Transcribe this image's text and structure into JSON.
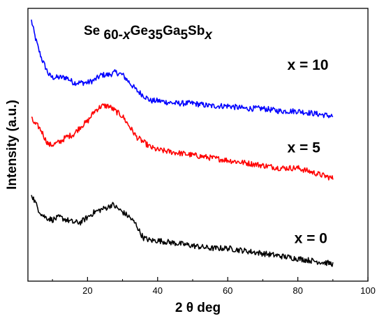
{
  "chart_data": {
    "type": "line",
    "title": {
      "parts": [
        {
          "text": "Se ",
          "sub": false,
          "italic": false
        },
        {
          "text": "60-",
          "sub": true,
          "italic": false
        },
        {
          "text": "x",
          "sub": true,
          "italic": true
        },
        {
          "text": "Ge",
          "sub": false,
          "italic": false
        },
        {
          "text": "35",
          "sub": true,
          "italic": false
        },
        {
          "text": "Ga",
          "sub": false,
          "italic": false
        },
        {
          "text": "5",
          "sub": true,
          "italic": false
        },
        {
          "text": "Sb",
          "sub": false,
          "italic": false
        },
        {
          "text": "x",
          "sub": true,
          "italic": true
        }
      ]
    },
    "xlabel": "2 θ  deg",
    "ylabel": "Intensity (a.u.)",
    "xlim": [
      3,
      100
    ],
    "ylim": [
      0,
      100
    ],
    "xticks": [
      20,
      40,
      60,
      80,
      100
    ],
    "yticks_shown": false,
    "grid": false,
    "legend": "none",
    "series": [
      {
        "name": "x = 10",
        "color": "#0000ff",
        "label_anchor": {
          "x": 77,
          "y": 79
        },
        "points": [
          [
            4,
            98
          ],
          [
            5,
            92
          ],
          [
            6,
            87
          ],
          [
            7,
            83
          ],
          [
            8,
            80
          ],
          [
            9,
            77
          ],
          [
            10,
            76
          ],
          [
            12,
            76
          ],
          [
            14,
            76
          ],
          [
            16,
            74
          ],
          [
            18,
            74
          ],
          [
            20,
            74
          ],
          [
            22,
            75
          ],
          [
            24,
            77
          ],
          [
            26,
            77
          ],
          [
            28,
            78
          ],
          [
            30,
            77
          ],
          [
            32,
            74
          ],
          [
            34,
            71
          ],
          [
            36,
            69
          ],
          [
            38,
            67
          ],
          [
            40,
            67
          ],
          [
            45,
            66
          ],
          [
            50,
            66
          ],
          [
            55,
            65
          ],
          [
            60,
            65
          ],
          [
            65,
            64
          ],
          [
            70,
            64
          ],
          [
            75,
            63
          ],
          [
            80,
            63
          ],
          [
            85,
            62
          ],
          [
            90,
            61
          ]
        ]
      },
      {
        "name": "x = 5",
        "color": "#ff0000",
        "label_anchor": {
          "x": 77,
          "y": 47
        },
        "points": [
          [
            4,
            60
          ],
          [
            5,
            58
          ],
          [
            6,
            57
          ],
          [
            7,
            55
          ],
          [
            8,
            52
          ],
          [
            9,
            50
          ],
          [
            10,
            50
          ],
          [
            12,
            51
          ],
          [
            14,
            53
          ],
          [
            16,
            54
          ],
          [
            18,
            57
          ],
          [
            20,
            59
          ],
          [
            22,
            63
          ],
          [
            24,
            65
          ],
          [
            25,
            65
          ],
          [
            26,
            65
          ],
          [
            28,
            63
          ],
          [
            30,
            61
          ],
          [
            32,
            57
          ],
          [
            34,
            53
          ],
          [
            36,
            51
          ],
          [
            38,
            49
          ],
          [
            40,
            48
          ],
          [
            45,
            47
          ],
          [
            50,
            46
          ],
          [
            55,
            45
          ],
          [
            60,
            44
          ],
          [
            65,
            43
          ],
          [
            70,
            42
          ],
          [
            75,
            41
          ],
          [
            80,
            41
          ],
          [
            85,
            39
          ],
          [
            90,
            37
          ]
        ]
      },
      {
        "name": "x = 0",
        "color": "#000000",
        "label_anchor": {
          "x": 79,
          "y": 12
        },
        "points": [
          [
            4,
            31
          ],
          [
            5,
            28
          ],
          [
            6,
            25
          ],
          [
            7,
            23
          ],
          [
            8,
            22
          ],
          [
            10,
            21
          ],
          [
            12,
            22
          ],
          [
            14,
            21
          ],
          [
            16,
            20
          ],
          [
            18,
            20
          ],
          [
            20,
            22
          ],
          [
            22,
            24
          ],
          [
            24,
            25
          ],
          [
            26,
            26
          ],
          [
            27,
            27
          ],
          [
            28,
            26
          ],
          [
            30,
            24
          ],
          [
            32,
            22
          ],
          [
            34,
            19
          ],
          [
            35,
            16
          ],
          [
            36,
            14
          ],
          [
            38,
            13
          ],
          [
            40,
            13
          ],
          [
            45,
            12
          ],
          [
            50,
            11
          ],
          [
            55,
            10
          ],
          [
            60,
            10
          ],
          [
            65,
            9
          ],
          [
            70,
            8
          ],
          [
            75,
            7
          ],
          [
            80,
            6
          ],
          [
            85,
            5
          ],
          [
            90,
            4
          ]
        ]
      }
    ]
  }
}
